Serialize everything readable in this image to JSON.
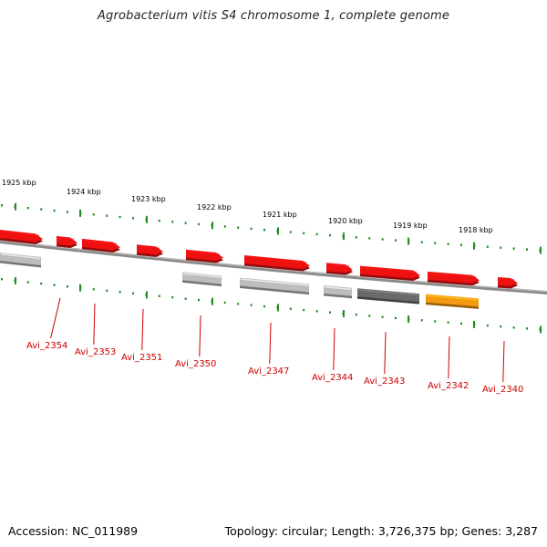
{
  "title": "Agrobacterium vitis S4 chromosome 1, complete genome",
  "footer": {
    "accession": "Accession: NC_011989",
    "summary": "Topology: circular; Length: 3,726,375 bp; Genes: 3,287"
  },
  "colors": {
    "backbone": "#8a8a8a",
    "tick": "#228b22",
    "label": "#cc0000",
    "gene_red": "#ee1111",
    "gene_light_gray": "#bdbdbd",
    "gene_dark_gray": "#6a6a6a",
    "gene_orange": "#f39a12"
  },
  "kbp_labels": [
    "1925 kbp",
    "1924 kbp",
    "1923 kbp",
    "1922 kbp",
    "1921 kbp",
    "1920 kbp",
    "1919 kbp",
    "1918 kbp"
  ],
  "genes": [
    {
      "label": "Avi_2354",
      "color": "gene_red",
      "strand": "outer"
    },
    {
      "label": "Avi_2353",
      "color": "gene_red",
      "strand": "outer"
    },
    {
      "label": "Avi_2351",
      "color": "gene_red",
      "strand": "outer"
    },
    {
      "label": "Avi_2350",
      "color": "gene_red",
      "strand": "outer"
    },
    {
      "label": "Avi_2347",
      "color": "gene_red",
      "strand": "outer"
    },
    {
      "label": "Avi_2344",
      "color": "gene_red",
      "strand": "outer"
    },
    {
      "label": "Avi_2343",
      "color": "gene_red",
      "strand": "outer"
    },
    {
      "label": "Avi_2342",
      "color": "gene_red",
      "strand": "outer"
    },
    {
      "label": "Avi_2340",
      "color": "gene_red",
      "strand": "outer"
    }
  ],
  "inner_features": [
    {
      "color": "gene_light_gray"
    },
    {
      "color": "gene_light_gray"
    },
    {
      "color": "gene_light_gray"
    },
    {
      "color": "gene_light_gray"
    },
    {
      "color": "gene_dark_gray"
    },
    {
      "color": "gene_orange"
    }
  ]
}
